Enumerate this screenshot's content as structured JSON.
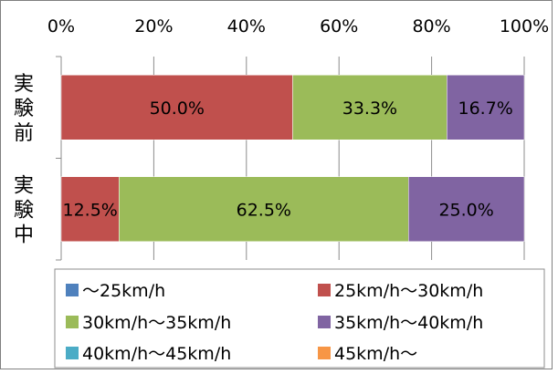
{
  "chart_data": {
    "type": "bar",
    "stacked": true,
    "orientation": "horizontal",
    "percent": true,
    "categories": [
      "実験前",
      "実験中"
    ],
    "series": [
      {
        "name": "〜25km/h",
        "values": [
          0,
          0
        ],
        "color": "#4f81bd"
      },
      {
        "name": "25km/h〜30km/h",
        "values": [
          50.0,
          12.5
        ],
        "color": "#c0504d"
      },
      {
        "name": "30km/h〜35km/h",
        "values": [
          33.3,
          62.5
        ],
        "color": "#9bbb59"
      },
      {
        "name": "35km/h〜40km/h",
        "values": [
          16.7,
          25.0
        ],
        "color": "#8064a2"
      },
      {
        "name": "40km/h〜45km/h",
        "values": [
          0,
          0
        ],
        "color": "#4bacc6"
      },
      {
        "name": "45km/h〜",
        "values": [
          0,
          0
        ],
        "color": "#f79646"
      }
    ],
    "data_labels": [
      [
        "",
        "50.0%",
        "33.3%",
        "16.7%",
        "",
        ""
      ],
      [
        "",
        "12.5%",
        "62.5%",
        "25.0%",
        "",
        ""
      ]
    ],
    "x_ticks": [
      "0%",
      "20%",
      "40%",
      "60%",
      "80%",
      "100%"
    ],
    "xlim": [
      0,
      100
    ],
    "grid": true,
    "legend_position": "bottom"
  }
}
